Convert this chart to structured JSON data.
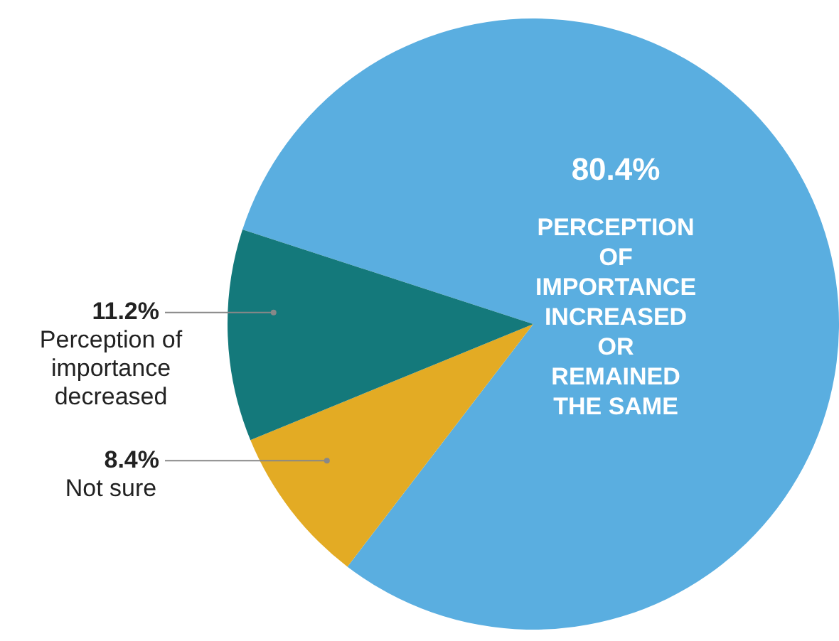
{
  "chart_data": {
    "type": "pie",
    "categories": [
      "PERCEPTION OF IMPORTANCE INCREASED OR REMAINED THE SAME",
      "Not sure",
      "Perception of importance decreased"
    ],
    "values": [
      80.4,
      8.4,
      11.2
    ],
    "value_labels": [
      "80.4%",
      "8.4%",
      "11.2%"
    ],
    "colors": [
      "#5aaee0",
      "#e3ab24",
      "#14797b"
    ],
    "legend": false
  }
}
